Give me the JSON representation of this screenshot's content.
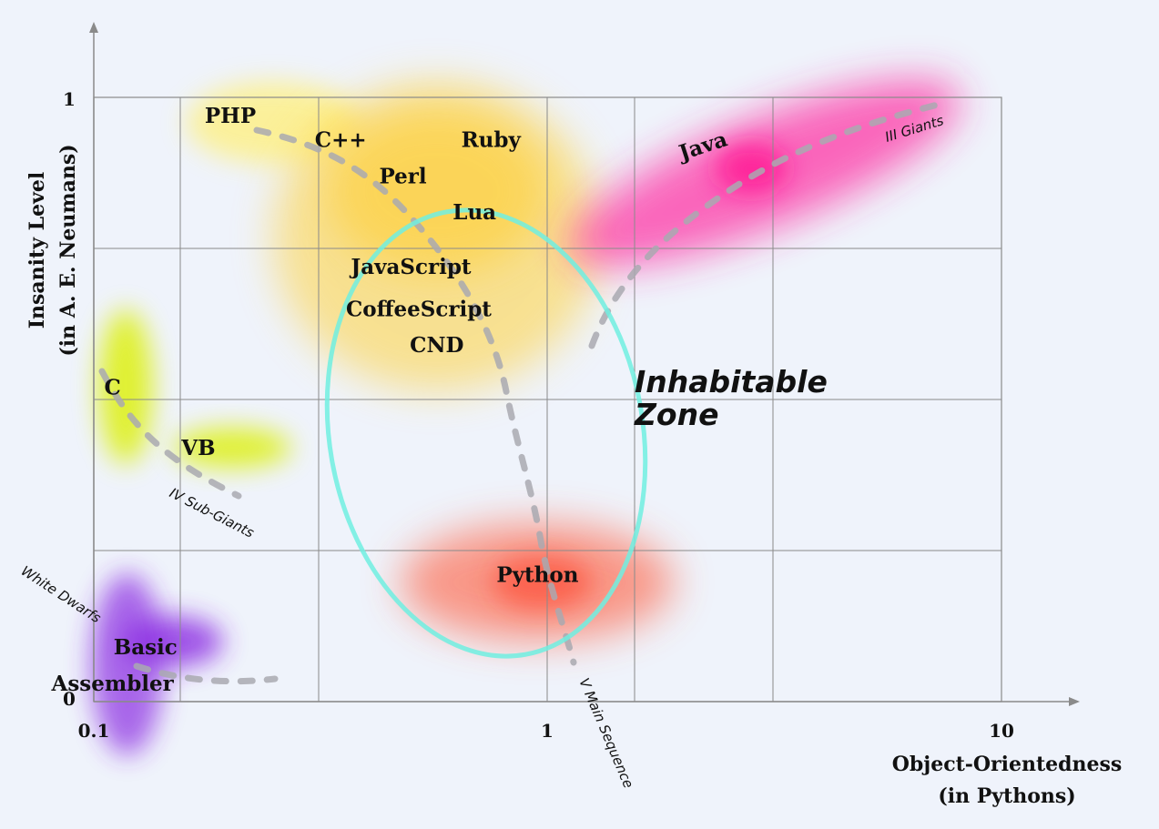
{
  "chart_data": {
    "type": "scatter",
    "xlabel": [
      "Object-Orientedness",
      "(in Pythons)"
    ],
    "ylabel": [
      "Insanity Level",
      "(in A. E. Neumans)"
    ],
    "x_scale": "log",
    "xlim": [
      0.1,
      10
    ],
    "ylim": [
      0,
      1
    ],
    "x_ticks": [
      "0.1",
      "1",
      "10"
    ],
    "y_ticks": [
      "0",
      "1"
    ],
    "grid": true,
    "points": [
      {
        "name": "PHP",
        "x": 0.2,
        "y": 0.97,
        "color": "#fff07a"
      },
      {
        "name": "C++",
        "x": 0.35,
        "y": 0.93,
        "color": "#ffd74a"
      },
      {
        "name": "Ruby",
        "x": 0.75,
        "y": 0.93,
        "color": "#ffd74a"
      },
      {
        "name": "Perl",
        "x": 0.48,
        "y": 0.87,
        "color": "#ffd74a"
      },
      {
        "name": "Lua",
        "x": 0.69,
        "y": 0.81,
        "color": "#ffd74a"
      },
      {
        "name": "JavaScript",
        "x": 0.5,
        "y": 0.72,
        "color": "#ffd23a"
      },
      {
        "name": "CoffeeScript",
        "x": 0.52,
        "y": 0.65,
        "color": "#ffd23a"
      },
      {
        "name": "CND",
        "x": 0.57,
        "y": 0.59,
        "color": "#ffd23a"
      },
      {
        "name": "C",
        "x": 0.11,
        "y": 0.52,
        "color": "#dcf000"
      },
      {
        "name": "VB",
        "x": 0.17,
        "y": 0.42,
        "color": "#dcf000"
      },
      {
        "name": "Java",
        "x": 2.2,
        "y": 0.92,
        "color": "#ff1493"
      },
      {
        "name": "Python",
        "x": 0.95,
        "y": 0.21,
        "color": "#ff4a2a"
      },
      {
        "name": "Basic",
        "x": 0.13,
        "y": 0.09,
        "color": "#8a2be2"
      },
      {
        "name": "Assembler",
        "x": 0.11,
        "y": 0.03,
        "color": "#8a2be2"
      }
    ],
    "annotations": [
      {
        "text": "White Dwarfs"
      },
      {
        "text": "IV Sub-Giants"
      },
      {
        "text": "V Main Sequence"
      },
      {
        "text": "III Giants"
      },
      {
        "text": "Inhabitable",
        "text2": "Zone"
      }
    ],
    "zone_color": "#70efe0",
    "sequence_color": "#a9a9b0"
  }
}
